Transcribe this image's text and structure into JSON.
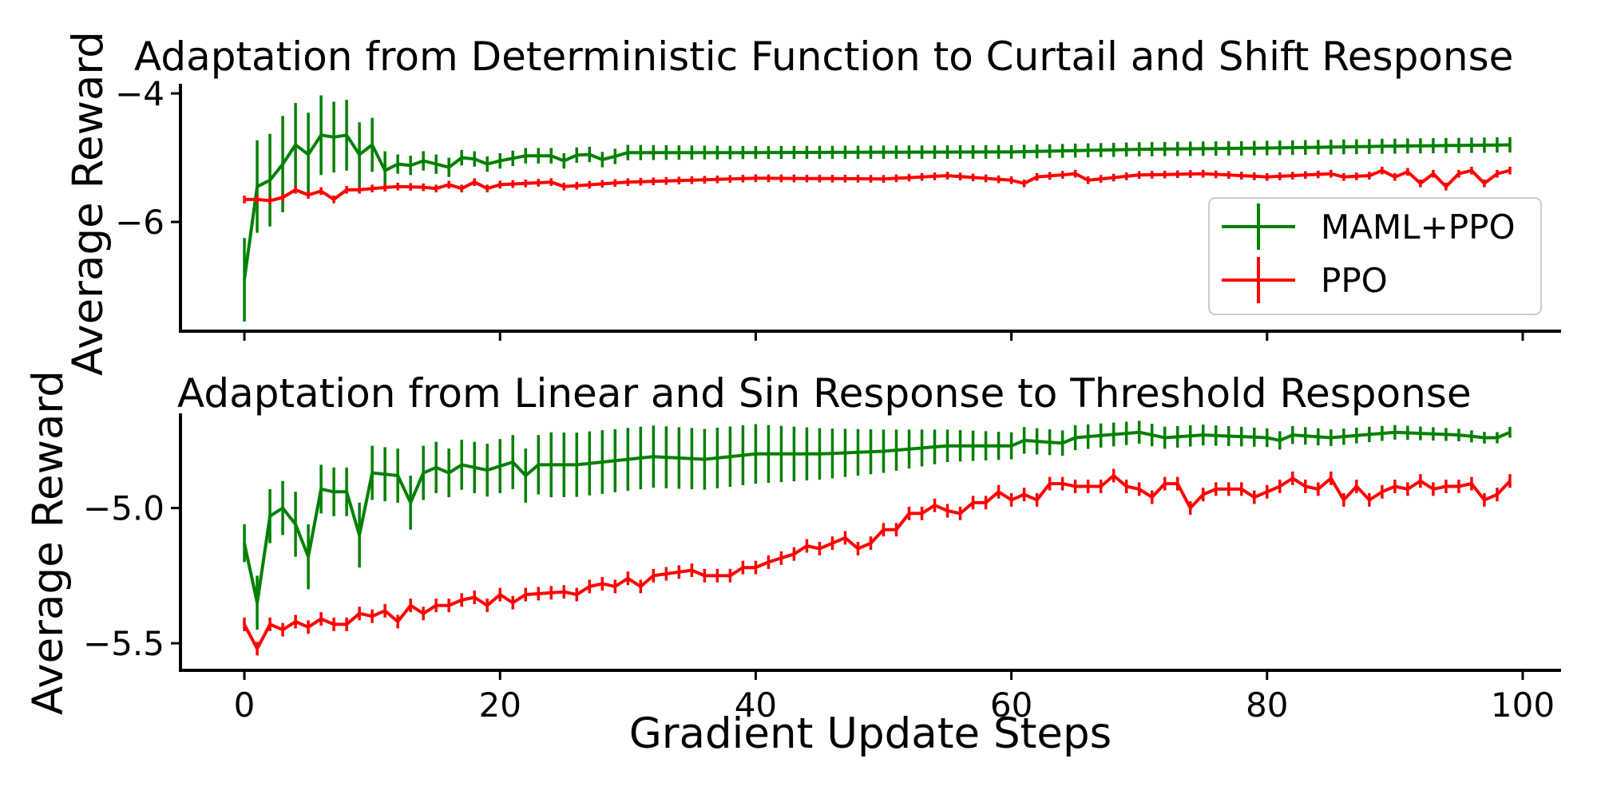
{
  "chart_data": [
    {
      "type": "line",
      "title": "Adaptation from Deterministic Function to Curtail and Shift Response",
      "xlabel": "",
      "ylabel": "Average Reward",
      "xlim": [
        -5,
        103
      ],
      "ylim": [
        -7.7,
        -3.85
      ],
      "yticks": [
        -6,
        -4
      ],
      "ytick_labels": [
        "−6",
        "−4"
      ],
      "xticks": [
        0,
        20,
        40,
        60,
        80,
        100
      ],
      "xtick_labels": [],
      "legend_position": "right",
      "grid": false,
      "series": [
        {
          "name": "MAML+PPO",
          "color": "#008000",
          "keypoints": [
            [
              0,
              -6.9
            ],
            [
              1,
              -5.45
            ],
            [
              2,
              -5.35
            ],
            [
              3,
              -5.1
            ],
            [
              4,
              -4.8
            ],
            [
              5,
              -4.95
            ],
            [
              6,
              -4.65
            ],
            [
              7,
              -4.68
            ],
            [
              8,
              -4.65
            ],
            [
              9,
              -4.95
            ],
            [
              10,
              -4.8
            ],
            [
              11,
              -5.2
            ],
            [
              12,
              -5.1
            ],
            [
              13,
              -5.12
            ],
            [
              14,
              -5.05
            ],
            [
              15,
              -5.1
            ],
            [
              16,
              -5.15
            ],
            [
              17,
              -5.0
            ],
            [
              18,
              -5.02
            ],
            [
              19,
              -5.1
            ],
            [
              20,
              -5.05
            ],
            [
              22,
              -4.97
            ],
            [
              24,
              -4.97
            ],
            [
              25,
              -5.05
            ],
            [
              26,
              -4.96
            ],
            [
              27,
              -4.95
            ],
            [
              28,
              -5.03
            ],
            [
              29,
              -4.98
            ],
            [
              30,
              -4.92
            ],
            [
              40,
              -4.92
            ],
            [
              60,
              -4.91
            ],
            [
              70,
              -4.87
            ],
            [
              80,
              -4.85
            ],
            [
              90,
              -4.82
            ],
            [
              99,
              -4.8
            ]
          ],
          "err_keypoints": [
            [
              0,
              0.65
            ],
            [
              1,
              0.72
            ],
            [
              2,
              0.72
            ],
            [
              3,
              0.75
            ],
            [
              4,
              0.65
            ],
            [
              5,
              0.65
            ],
            [
              6,
              0.62
            ],
            [
              7,
              0.55
            ],
            [
              8,
              0.55
            ],
            [
              9,
              0.5
            ],
            [
              10,
              0.42
            ],
            [
              11,
              0.3
            ],
            [
              12,
              0.15
            ],
            [
              16,
              0.15
            ],
            [
              17,
              0.12
            ],
            [
              25,
              0.12
            ],
            [
              30,
              0.12
            ],
            [
              40,
              0.1
            ],
            [
              99,
              0.12
            ]
          ]
        },
        {
          "name": "PPO",
          "color": "#ff0000",
          "keypoints": [
            [
              0,
              -5.65
            ],
            [
              1,
              -5.65
            ],
            [
              2,
              -5.67
            ],
            [
              3,
              -5.62
            ],
            [
              4,
              -5.5
            ],
            [
              5,
              -5.58
            ],
            [
              6,
              -5.52
            ],
            [
              7,
              -5.65
            ],
            [
              8,
              -5.5
            ],
            [
              9,
              -5.5
            ],
            [
              10,
              -5.48
            ],
            [
              12,
              -5.45
            ],
            [
              14,
              -5.46
            ],
            [
              15,
              -5.48
            ],
            [
              16,
              -5.42
            ],
            [
              17,
              -5.48
            ],
            [
              18,
              -5.38
            ],
            [
              19,
              -5.48
            ],
            [
              20,
              -5.42
            ],
            [
              22,
              -5.4
            ],
            [
              24,
              -5.38
            ],
            [
              25,
              -5.45
            ],
            [
              30,
              -5.38
            ],
            [
              40,
              -5.32
            ],
            [
              50,
              -5.33
            ],
            [
              55,
              -5.28
            ],
            [
              60,
              -5.35
            ],
            [
              61,
              -5.4
            ],
            [
              62,
              -5.3
            ],
            [
              65,
              -5.25
            ],
            [
              66,
              -5.35
            ],
            [
              70,
              -5.27
            ],
            [
              75,
              -5.25
            ],
            [
              80,
              -5.3
            ],
            [
              85,
              -5.25
            ],
            [
              86,
              -5.3
            ],
            [
              88,
              -5.28
            ],
            [
              89,
              -5.2
            ],
            [
              90,
              -5.3
            ],
            [
              91,
              -5.22
            ],
            [
              92,
              -5.4
            ],
            [
              93,
              -5.25
            ],
            [
              94,
              -5.45
            ],
            [
              95,
              -5.25
            ],
            [
              96,
              -5.2
            ],
            [
              97,
              -5.4
            ],
            [
              98,
              -5.25
            ],
            [
              99,
              -5.2
            ]
          ],
          "err_keypoints": [
            [
              0,
              0.06
            ],
            [
              99,
              0.06
            ]
          ]
        }
      ]
    },
    {
      "type": "line",
      "title": "Adaptation from Linear and Sin Response to Threshold Response",
      "xlabel": "Gradient Update Steps",
      "ylabel": "Average Reward",
      "xlim": [
        -5,
        103
      ],
      "ylim": [
        -5.6,
        -4.65
      ],
      "yticks": [
        -5.5,
        -5.0
      ],
      "ytick_labels": [
        "−5.5",
        "−5.0"
      ],
      "xticks": [
        0,
        20,
        40,
        60,
        80,
        100
      ],
      "xtick_labels": [
        "0",
        "20",
        "40",
        "60",
        "80",
        "100"
      ],
      "grid": false,
      "series": [
        {
          "name": "MAML+PPO",
          "color": "#008000",
          "keypoints": [
            [
              0,
              -5.13
            ],
            [
              1,
              -5.35
            ],
            [
              2,
              -5.03
            ],
            [
              3,
              -5.0
            ],
            [
              4,
              -5.06
            ],
            [
              5,
              -5.18
            ],
            [
              6,
              -4.93
            ],
            [
              7,
              -4.94
            ],
            [
              8,
              -4.94
            ],
            [
              9,
              -5.1
            ],
            [
              10,
              -4.87
            ],
            [
              12,
              -4.88
            ],
            [
              13,
              -4.98
            ],
            [
              14,
              -4.87
            ],
            [
              15,
              -4.85
            ],
            [
              16,
              -4.87
            ],
            [
              17,
              -4.84
            ],
            [
              19,
              -4.86
            ],
            [
              21,
              -4.83
            ],
            [
              22,
              -4.88
            ],
            [
              23,
              -4.84
            ],
            [
              26,
              -4.84
            ],
            [
              28,
              -4.83
            ],
            [
              32,
              -4.81
            ],
            [
              36,
              -4.82
            ],
            [
              40,
              -4.8
            ],
            [
              45,
              -4.8
            ],
            [
              50,
              -4.79
            ],
            [
              55,
              -4.77
            ],
            [
              60,
              -4.77
            ],
            [
              61,
              -4.75
            ],
            [
              64,
              -4.76
            ],
            [
              65,
              -4.74
            ],
            [
              70,
              -4.72
            ],
            [
              72,
              -4.74
            ],
            [
              75,
              -4.73
            ],
            [
              80,
              -4.74
            ],
            [
              81,
              -4.75
            ],
            [
              82,
              -4.73
            ],
            [
              85,
              -4.74
            ],
            [
              90,
              -4.72
            ],
            [
              95,
              -4.73
            ],
            [
              97,
              -4.74
            ],
            [
              98,
              -4.74
            ],
            [
              99,
              -4.72
            ]
          ],
          "err_keypoints": [
            [
              0,
              0.07
            ],
            [
              1,
              0.1
            ],
            [
              2,
              0.1
            ],
            [
              3,
              0.1
            ],
            [
              4,
              0.12
            ],
            [
              5,
              0.12
            ],
            [
              6,
              0.09
            ],
            [
              7,
              0.09
            ],
            [
              8,
              0.09
            ],
            [
              9,
              0.12
            ],
            [
              10,
              0.1
            ],
            [
              14,
              0.1
            ],
            [
              16,
              0.09
            ],
            [
              20,
              0.1
            ],
            [
              22,
              0.1
            ],
            [
              24,
              0.12
            ],
            [
              40,
              0.11
            ],
            [
              50,
              0.08
            ],
            [
              55,
              0.06
            ],
            [
              60,
              0.05
            ],
            [
              99,
              0.02
            ]
          ]
        },
        {
          "name": "PPO",
          "color": "#ff0000",
          "keypoints": [
            [
              0,
              -5.43
            ],
            [
              1,
              -5.52
            ],
            [
              2,
              -5.43
            ],
            [
              3,
              -5.45
            ],
            [
              4,
              -5.42
            ],
            [
              5,
              -5.44
            ],
            [
              6,
              -5.41
            ],
            [
              7,
              -5.43
            ],
            [
              8,
              -5.43
            ],
            [
              9,
              -5.39
            ],
            [
              10,
              -5.4
            ],
            [
              11,
              -5.38
            ],
            [
              12,
              -5.42
            ],
            [
              13,
              -5.36
            ],
            [
              14,
              -5.39
            ],
            [
              15,
              -5.36
            ],
            [
              16,
              -5.36
            ],
            [
              17,
              -5.34
            ],
            [
              18,
              -5.33
            ],
            [
              19,
              -5.36
            ],
            [
              20,
              -5.32
            ],
            [
              21,
              -5.35
            ],
            [
              22,
              -5.32
            ],
            [
              25,
              -5.31
            ],
            [
              26,
              -5.32
            ],
            [
              27,
              -5.29
            ],
            [
              28,
              -5.28
            ],
            [
              29,
              -5.29
            ],
            [
              30,
              -5.26
            ],
            [
              31,
              -5.29
            ],
            [
              32,
              -5.25
            ],
            [
              35,
              -5.23
            ],
            [
              36,
              -5.25
            ],
            [
              38,
              -5.25
            ],
            [
              39,
              -5.22
            ],
            [
              40,
              -5.22
            ],
            [
              41,
              -5.2
            ],
            [
              43,
              -5.17
            ],
            [
              44,
              -5.14
            ],
            [
              45,
              -5.15
            ],
            [
              47,
              -5.11
            ],
            [
              48,
              -5.15
            ],
            [
              49,
              -5.13
            ],
            [
              50,
              -5.08
            ],
            [
              51,
              -5.08
            ],
            [
              52,
              -5.02
            ],
            [
              53,
              -5.02
            ],
            [
              54,
              -4.99
            ],
            [
              55,
              -5.01
            ],
            [
              56,
              -5.02
            ],
            [
              57,
              -4.98
            ],
            [
              58,
              -4.98
            ],
            [
              59,
              -4.94
            ],
            [
              60,
              -4.97
            ],
            [
              61,
              -4.95
            ],
            [
              62,
              -4.97
            ],
            [
              63,
              -4.91
            ],
            [
              64,
              -4.91
            ],
            [
              65,
              -4.92
            ],
            [
              67,
              -4.92
            ],
            [
              68,
              -4.88
            ],
            [
              69,
              -4.92
            ],
            [
              70,
              -4.93
            ],
            [
              71,
              -4.96
            ],
            [
              72,
              -4.91
            ],
            [
              73,
              -4.91
            ],
            [
              74,
              -5.0
            ],
            [
              75,
              -4.95
            ],
            [
              76,
              -4.93
            ],
            [
              78,
              -4.93
            ],
            [
              79,
              -4.96
            ],
            [
              80,
              -4.94
            ],
            [
              81,
              -4.92
            ],
            [
              82,
              -4.89
            ],
            [
              83,
              -4.92
            ],
            [
              84,
              -4.93
            ],
            [
              85,
              -4.89
            ],
            [
              86,
              -4.97
            ],
            [
              87,
              -4.92
            ],
            [
              88,
              -4.97
            ],
            [
              89,
              -4.94
            ],
            [
              90,
              -4.92
            ],
            [
              91,
              -4.93
            ],
            [
              92,
              -4.9
            ],
            [
              93,
              -4.93
            ],
            [
              94,
              -4.92
            ],
            [
              95,
              -4.92
            ],
            [
              96,
              -4.91
            ],
            [
              97,
              -4.97
            ],
            [
              98,
              -4.95
            ],
            [
              99,
              -4.9
            ]
          ],
          "err_keypoints": [
            [
              0,
              0.025
            ],
            [
              99,
              0.025
            ]
          ]
        }
      ]
    }
  ]
}
